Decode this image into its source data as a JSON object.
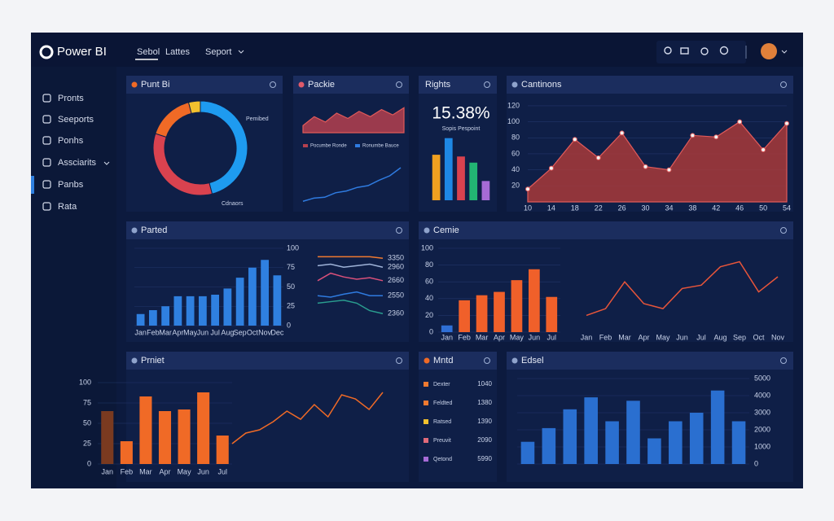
{
  "header": {
    "brand": "Power BI",
    "tabs": [
      "Sebol",
      "Lattes",
      "Seport"
    ]
  },
  "sidebar": [
    "Pronts",
    "Seeports",
    "Ponhs",
    "Assciarits",
    "Panbs",
    "Rata"
  ],
  "list": {
    "title": "Mntd",
    "rows": [
      [
        "Dexter",
        "1040"
      ],
      [
        "Feldted",
        "1380"
      ],
      [
        "Ratsed",
        "1390"
      ],
      [
        "Preuvit",
        "2090"
      ],
      [
        "Qetond",
        "5990"
      ]
    ]
  },
  "chart_data": [
    {
      "type": "pie",
      "title": "Punt Bi",
      "values": [
        46,
        34,
        16,
        4
      ],
      "colors": [
        "#1e9bf0",
        "#d9424f",
        "#f06a26",
        "#f2c12e"
      ],
      "annotations": [
        "Pemibed",
        "Cdnaors"
      ]
    },
    {
      "type": "area",
      "title": "Packie",
      "series": [
        {
          "name": "Pocumbe Ronde",
          "color": "#b4404f",
          "values": [
            20,
            45,
            30,
            55,
            40,
            60,
            45,
            65,
            50,
            70
          ]
        }
      ],
      "ylim": [
        0,
        80
      ]
    },
    {
      "type": "line",
      "series": [
        {
          "name": "Ronumbe Bauce",
          "color": "#2f7be0",
          "values": [
            5,
            12,
            14,
            24,
            28,
            36,
            40,
            52,
            62,
            80
          ]
        }
      ],
      "ylim": [
        0,
        100
      ]
    },
    {
      "type": "bar",
      "title": "Rights",
      "kpi": "15.38%",
      "subtitle": "Sopis Pespoint",
      "values": [
        52,
        71,
        50,
        43,
        22
      ],
      "colors": [
        "#f0a020",
        "#1e88e5",
        "#d9424f",
        "#22b573",
        "#a66bd6"
      ],
      "ylim": [
        0,
        80
      ]
    },
    {
      "type": "area",
      "title": "Cantinons",
      "values": [
        16,
        42,
        78,
        55,
        86,
        44,
        40,
        83,
        81,
        100,
        65,
        98
      ],
      "color": "#a83a3a",
      "markers": true,
      "ylim": [
        0,
        125
      ],
      "yticks": [
        20,
        40,
        60,
        80,
        100,
        120
      ],
      "categories": [
        "10",
        "14",
        "18",
        "22",
        "26",
        "30",
        "34",
        "38",
        "42",
        "46",
        "50",
        "54"
      ]
    },
    {
      "type": "bar",
      "title": "Parted",
      "values": [
        15,
        20,
        25,
        38,
        38,
        38,
        40,
        48,
        62,
        75,
        85,
        65
      ],
      "color": "#2f80e0",
      "ylim": [
        0,
        100
      ],
      "yticks": [
        0,
        25,
        50,
        75,
        100
      ],
      "categories": [
        "Jan",
        "Feb",
        "Mar",
        "Apr",
        "May",
        "Jun",
        "Jul",
        "Aug",
        "Sep",
        "Oct",
        "Nov",
        "Dec"
      ]
    },
    {
      "type": "line",
      "series": [
        {
          "name": "3350",
          "color": "#f07a30",
          "values": [
            92,
            92,
            92,
            92,
            92,
            90
          ]
        },
        {
          "name": "2960",
          "color": "#9fb3d8",
          "values": [
            80,
            82,
            78,
            80,
            82,
            78
          ]
        },
        {
          "name": "2660",
          "color": "#d9507a",
          "values": [
            60,
            70,
            65,
            62,
            64,
            60
          ]
        },
        {
          "name": "2550",
          "color": "#2f7be0",
          "values": [
            40,
            38,
            42,
            45,
            40,
            40
          ]
        },
        {
          "name": "2360",
          "color": "#2a9d8f",
          "values": [
            30,
            32,
            34,
            30,
            20,
            16
          ]
        }
      ],
      "ylim": [
        0,
        100
      ]
    },
    {
      "type": "bar",
      "title": "Cemie",
      "values": [
        8,
        38,
        44,
        48,
        62,
        75,
        42
      ],
      "colors": [
        "#2f6fd6",
        "#f0602a",
        "#f0602a",
        "#f0602a",
        "#f0602a",
        "#f0602a",
        "#f0602a"
      ],
      "ylim": [
        0,
        100
      ],
      "yticks": [
        0,
        20,
        40,
        60,
        80,
        100
      ],
      "categories": [
        "Jan",
        "Feb",
        "Mar",
        "Apr",
        "May",
        "Jun",
        "Jul"
      ]
    },
    {
      "type": "line",
      "values": [
        20,
        28,
        60,
        34,
        28,
        52,
        56,
        78,
        84,
        48,
        66
      ],
      "color": "#e8553a",
      "ylim": [
        0,
        100
      ],
      "categories": [
        "Jan",
        "Feb",
        "Mar",
        "Apr",
        "May",
        "Jun",
        "Jul",
        "Aug",
        "Sep",
        "Oct",
        "Nov"
      ]
    },
    {
      "type": "bar",
      "title": "Prniet",
      "values": [
        65,
        28,
        83,
        65,
        67,
        88,
        35
      ],
      "colors": [
        "#7a3a20",
        "#f06a26",
        "#f06a26",
        "#f06a26",
        "#f06a26",
        "#f06a26",
        "#f06a26"
      ],
      "ylim": [
        0,
        100
      ],
      "yticks": [
        0,
        25,
        50,
        75,
        100
      ],
      "categories": [
        "Jan",
        "Feb",
        "Mar",
        "Apr",
        "May",
        "Jun",
        "Jul"
      ]
    },
    {
      "type": "line",
      "values": [
        25,
        38,
        42,
        52,
        65,
        55,
        73,
        58,
        85,
        80,
        67,
        88
      ],
      "color": "#f06a26",
      "ylim": [
        0,
        100
      ]
    },
    {
      "type": "bar",
      "title": "Edsel",
      "values": [
        1300,
        2100,
        3200,
        3900,
        2500,
        3700,
        1500,
        2500,
        3000,
        4300,
        2500
      ],
      "color": "#2a6fd0",
      "ylim": [
        0,
        5000
      ],
      "yticks": [
        0,
        1000,
        2000,
        3000,
        4000,
        5000
      ]
    }
  ]
}
